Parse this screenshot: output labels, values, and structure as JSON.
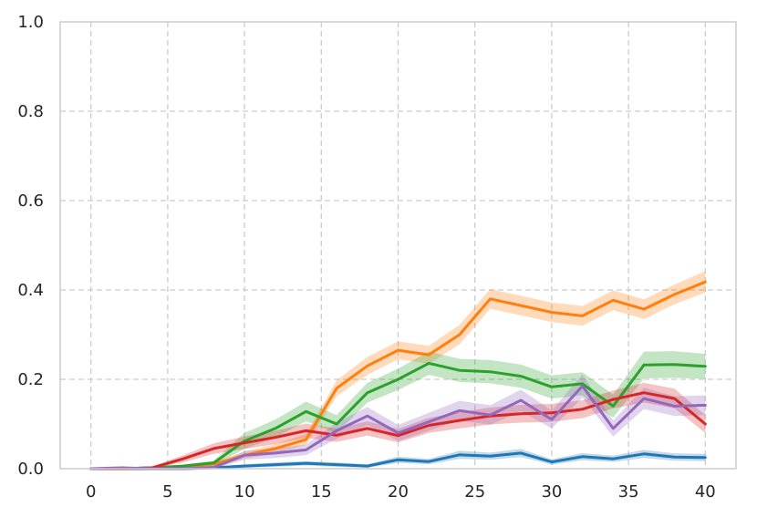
{
  "chart_data": {
    "type": "line",
    "title": "",
    "xlabel": "",
    "ylabel": "",
    "xlim": [
      -2,
      42
    ],
    "ylim": [
      0,
      1.0
    ],
    "grid": true,
    "legend": "none",
    "x_ticks": [
      "0",
      "5",
      "10",
      "15",
      "20",
      "25",
      "30",
      "35",
      "40"
    ],
    "y_ticks": [
      "0.0",
      "0.2",
      "0.4",
      "0.6",
      "0.8",
      "1.0"
    ],
    "series": [
      {
        "color": "#1f77b4",
        "x": [
          0,
          2,
          4,
          6,
          8,
          10,
          12,
          14,
          16,
          18,
          20,
          22,
          24,
          26,
          28,
          30,
          32,
          34,
          36,
          38,
          40
        ],
        "y": [
          0.0,
          0.0,
          0.0,
          0.0,
          0.002,
          0.006,
          0.009,
          0.012,
          0.009,
          0.006,
          0.02,
          0.016,
          0.031,
          0.028,
          0.035,
          0.015,
          0.027,
          0.022,
          0.033,
          0.026,
          0.025
        ],
        "err": [
          0.0,
          0.001,
          0.001,
          0.001,
          0.003,
          0.004,
          0.005,
          0.005,
          0.005,
          0.004,
          0.007,
          0.006,
          0.009,
          0.008,
          0.009,
          0.006,
          0.008,
          0.007,
          0.009,
          0.008,
          0.008
        ]
      },
      {
        "color": "#ff7f0e",
        "x": [
          0,
          2,
          4,
          6,
          8,
          10,
          12,
          14,
          16,
          18,
          20,
          22,
          24,
          26,
          28,
          30,
          32,
          34,
          36,
          38,
          40
        ],
        "y": [
          0.0,
          0.0,
          0.002,
          0.005,
          0.01,
          0.03,
          0.045,
          0.065,
          0.18,
          0.23,
          0.265,
          0.255,
          0.3,
          0.38,
          0.365,
          0.35,
          0.342,
          0.377,
          0.357,
          0.39,
          0.418
        ],
        "err": [
          0.0,
          0.001,
          0.002,
          0.003,
          0.005,
          0.008,
          0.01,
          0.012,
          0.018,
          0.02,
          0.02,
          0.02,
          0.022,
          0.022,
          0.022,
          0.022,
          0.022,
          0.022,
          0.022,
          0.022,
          0.024
        ]
      },
      {
        "color": "#2ca02c",
        "x": [
          0,
          2,
          4,
          6,
          8,
          10,
          12,
          14,
          16,
          18,
          20,
          22,
          24,
          26,
          28,
          30,
          32,
          34,
          36,
          38,
          40
        ],
        "y": [
          0.0,
          0.0,
          0.002,
          0.006,
          0.013,
          0.062,
          0.09,
          0.128,
          0.1,
          0.17,
          0.2,
          0.236,
          0.22,
          0.217,
          0.207,
          0.183,
          0.19,
          0.14,
          0.232,
          0.233,
          0.229
        ],
        "err": [
          0.0,
          0.001,
          0.002,
          0.003,
          0.005,
          0.018,
          0.02,
          0.022,
          0.02,
          0.022,
          0.024,
          0.026,
          0.026,
          0.026,
          0.026,
          0.026,
          0.026,
          0.026,
          0.03,
          0.03,
          0.028
        ]
      },
      {
        "color": "#d62728",
        "x": [
          0,
          2,
          4,
          6,
          8,
          10,
          12,
          14,
          16,
          18,
          20,
          22,
          24,
          26,
          28,
          30,
          32,
          34,
          36,
          38,
          40
        ],
        "y": [
          0.0,
          0.0,
          0.002,
          0.022,
          0.045,
          0.058,
          0.07,
          0.085,
          0.075,
          0.09,
          0.074,
          0.097,
          0.108,
          0.118,
          0.123,
          0.125,
          0.133,
          0.155,
          0.17,
          0.157,
          0.1
        ],
        "err": [
          0.0,
          0.002,
          0.003,
          0.008,
          0.012,
          0.014,
          0.015,
          0.016,
          0.015,
          0.016,
          0.015,
          0.017,
          0.018,
          0.019,
          0.02,
          0.02,
          0.02,
          0.02,
          0.022,
          0.022,
          0.02
        ]
      },
      {
        "color": "#9467bd",
        "x": [
          0,
          2,
          4,
          6,
          8,
          10,
          12,
          14,
          16,
          18,
          20,
          22,
          24,
          26,
          28,
          30,
          32,
          34,
          36,
          38,
          40
        ],
        "y": [
          0.0,
          0.002,
          0.0,
          0.0,
          0.003,
          0.03,
          0.035,
          0.042,
          0.085,
          0.118,
          0.08,
          0.105,
          0.13,
          0.12,
          0.153,
          0.11,
          0.185,
          0.09,
          0.157,
          0.14,
          0.142
        ],
        "err": [
          0.0,
          0.002,
          0.001,
          0.001,
          0.003,
          0.01,
          0.011,
          0.012,
          0.018,
          0.02,
          0.018,
          0.02,
          0.022,
          0.022,
          0.024,
          0.02,
          0.026,
          0.018,
          0.024,
          0.022,
          0.022
        ]
      }
    ]
  }
}
